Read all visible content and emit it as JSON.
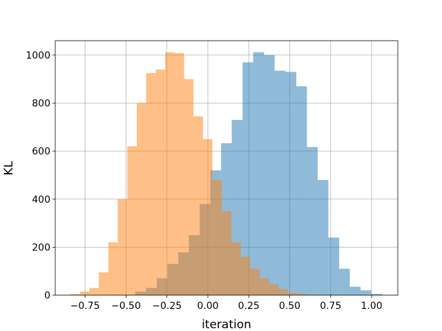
{
  "chart_data": {
    "type": "histogram",
    "x_label": "iteration",
    "y_label": "KL",
    "series": [
      {
        "color": "#1f77b4",
        "opacity": 0.5,
        "bins": [
          -0.443,
          -0.378,
          -0.312,
          -0.247,
          -0.181,
          -0.116,
          -0.05,
          0.015,
          0.081,
          0.146,
          0.212,
          0.277,
          0.343,
          0.408,
          0.474,
          0.54,
          0.605,
          0.671,
          0.736,
          0.802,
          0.867,
          0.933,
          0.998,
          1.064
        ],
        "values": [
          15,
          30,
          70,
          130,
          178,
          250,
          380,
          520,
          633,
          730,
          970,
          1012,
          1000,
          935,
          930,
          870,
          617,
          480,
          240,
          110,
          35,
          20,
          5
        ]
      },
      {
        "color": "#ff7f0e",
        "opacity": 0.5,
        "bins": [
          -0.839,
          -0.781,
          -0.723,
          -0.666,
          -0.608,
          -0.55,
          -0.492,
          -0.434,
          -0.377,
          -0.319,
          -0.261,
          -0.203,
          -0.145,
          -0.088,
          -0.03,
          0.028,
          0.086,
          0.144,
          0.201,
          0.259,
          0.317,
          0.375,
          0.433,
          0.49,
          0.548,
          0.606
        ],
        "values": [
          5,
          15,
          30,
          95,
          220,
          400,
          620,
          800,
          925,
          940,
          1012,
          1008,
          900,
          745,
          650,
          480,
          350,
          220,
          160,
          110,
          70,
          45,
          25,
          10,
          5
        ]
      }
    ],
    "xlim": [
      -0.932,
      1.16
    ],
    "ylim": [
      0,
      1060
    ],
    "xticks": [
      {
        "value": -0.75,
        "label": "−0.75"
      },
      {
        "value": -0.5,
        "label": "−0.50"
      },
      {
        "value": -0.25,
        "label": "−0.25"
      },
      {
        "value": 0,
        "label": "0.00"
      },
      {
        "value": 0.25,
        "label": "0.25"
      },
      {
        "value": 0.5,
        "label": "0.50"
      },
      {
        "value": 0.75,
        "label": "0.75"
      },
      {
        "value": 1,
        "label": "1.00"
      }
    ],
    "yticks": [
      0,
      200,
      400,
      600,
      800,
      1000
    ],
    "grid": true
  }
}
